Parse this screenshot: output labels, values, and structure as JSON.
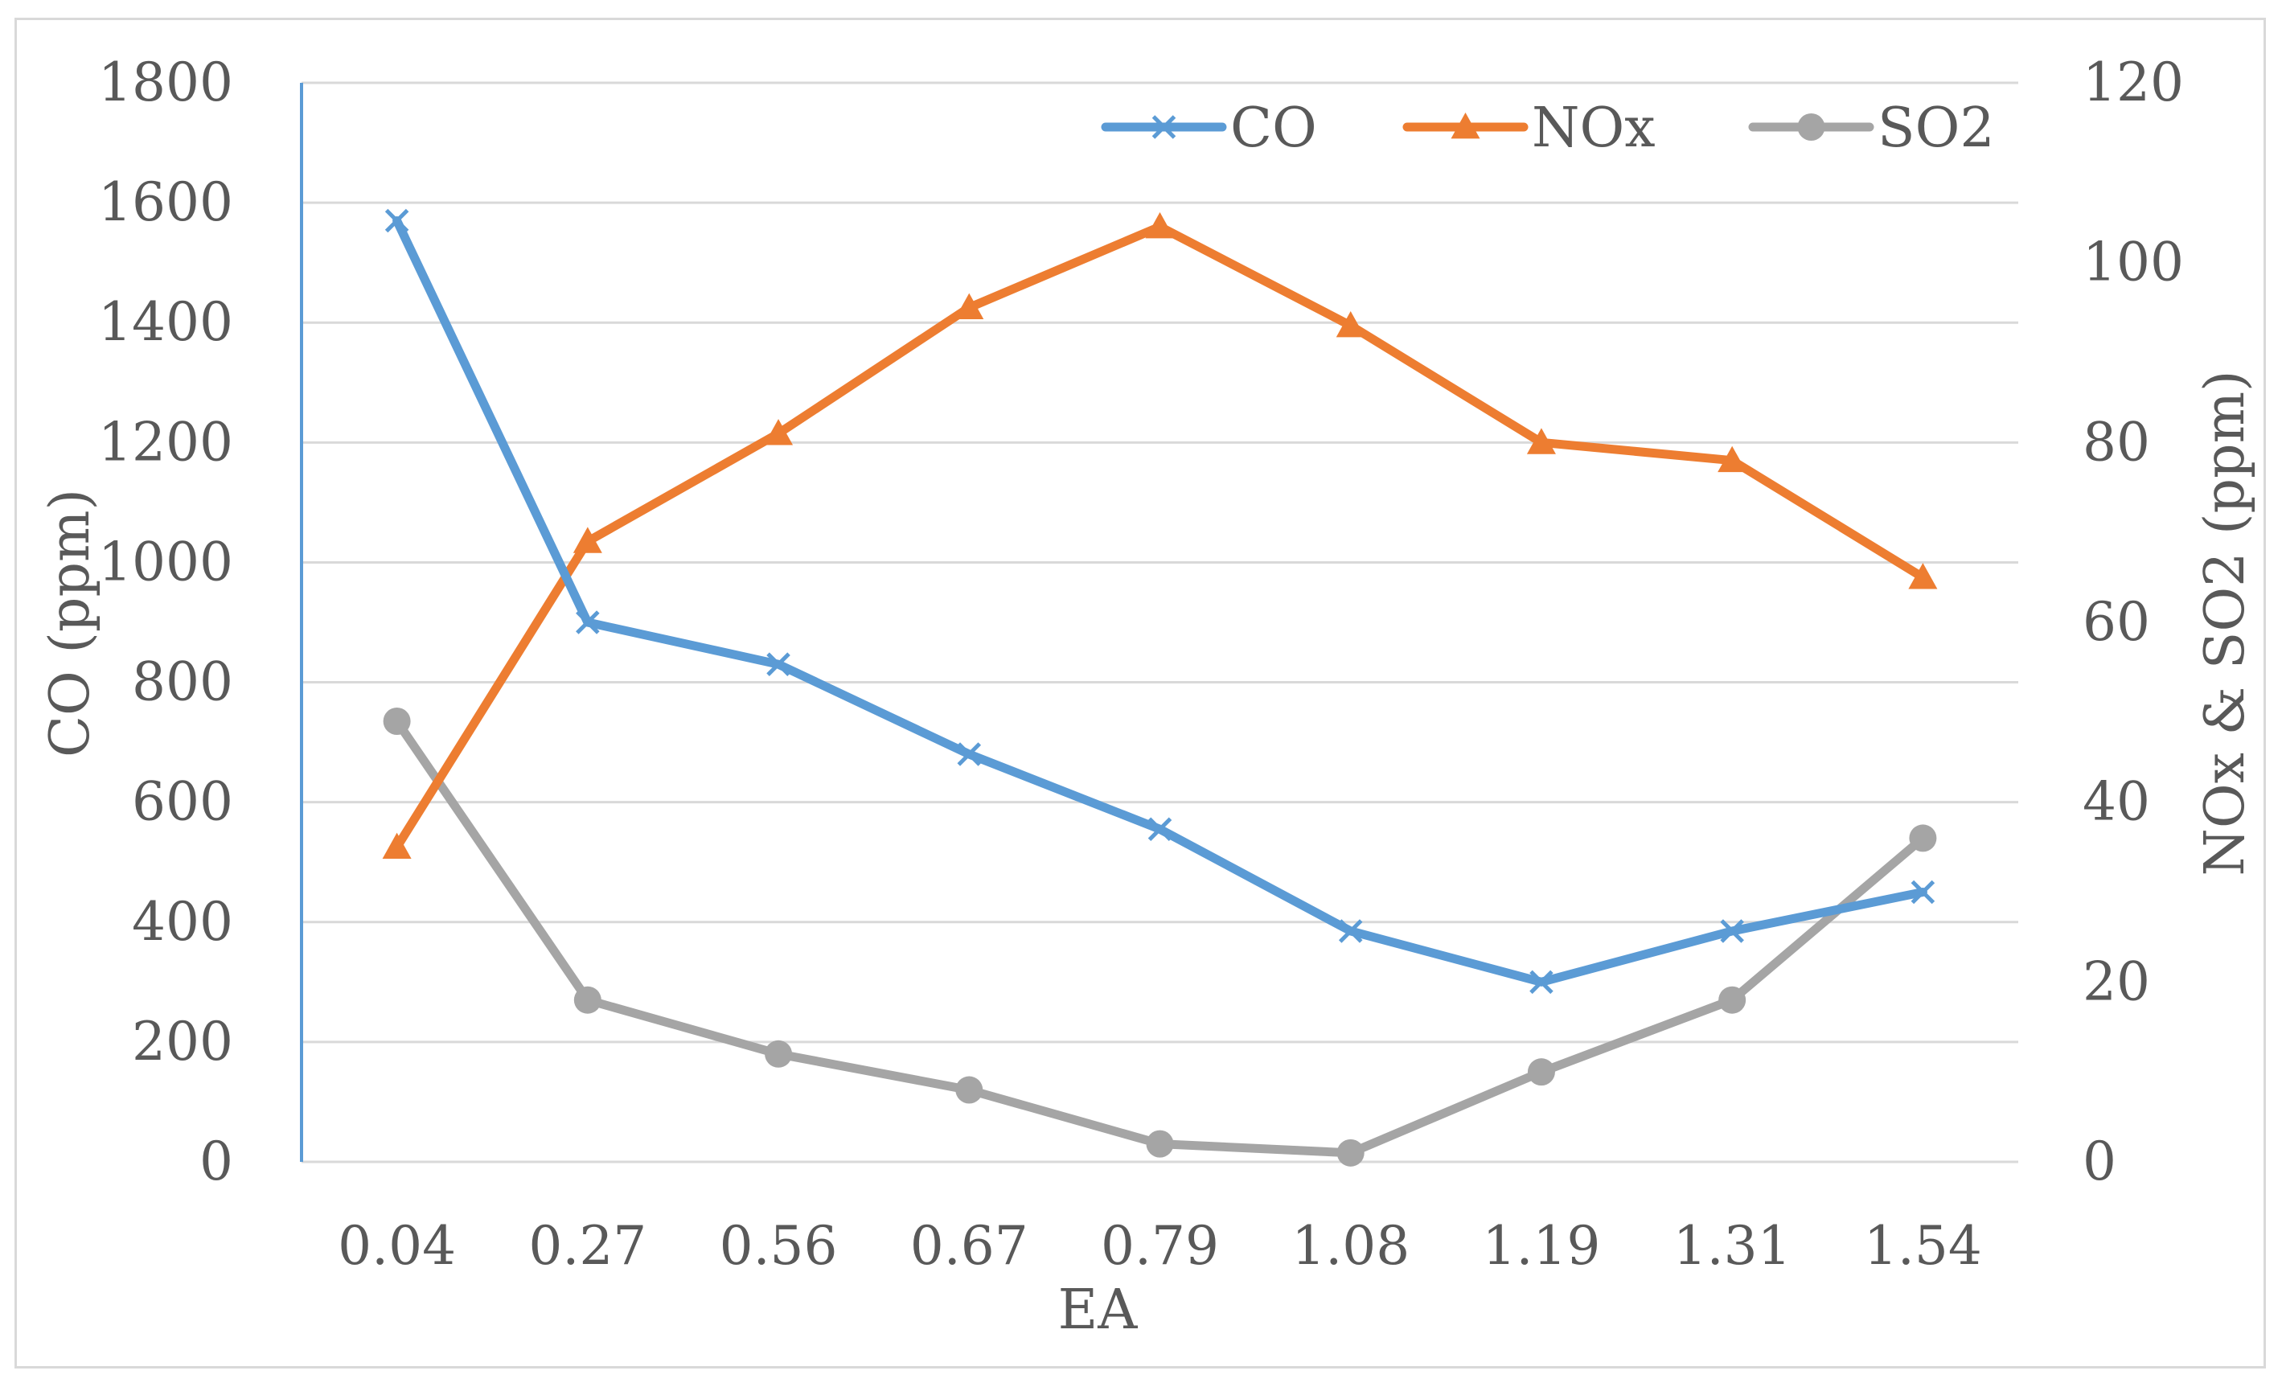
{
  "chart_data": {
    "type": "line",
    "title": "",
    "x": [
      "0.04",
      "0.27",
      "0.56",
      "0.67",
      "0.79",
      "1.08",
      "1.19",
      "1.31",
      "1.54"
    ],
    "xlabel": "EA",
    "ylabel_left": "CO (ppm)",
    "ylabel_right": "NOx & SO2 (ppm)",
    "ylim_left": [
      0,
      1800
    ],
    "ylim_right": [
      0,
      120
    ],
    "yticks_left": [
      "0",
      "200",
      "400",
      "600",
      "800",
      "1000",
      "1200",
      "1400",
      "1600",
      "1800"
    ],
    "yticks_right": [
      "0",
      "20",
      "40",
      "60",
      "80",
      "100",
      "120"
    ],
    "grid": true,
    "legend_position": "top-right",
    "series": [
      {
        "name": "CO",
        "axis": "left",
        "marker": "x",
        "color": "#5b9bd5",
        "values": [
          1570,
          900,
          830,
          680,
          555,
          385,
          300,
          385,
          450
        ]
      },
      {
        "name": "NOx",
        "axis": "right",
        "marker": "triangle",
        "color": "#ed7d31",
        "values": [
          35,
          69,
          81,
          95,
          104,
          93,
          80,
          78,
          65
        ]
      },
      {
        "name": "SO2",
        "axis": "right",
        "marker": "circle",
        "color": "#a5a5a5",
        "values": [
          49,
          18,
          12,
          8,
          2,
          1,
          10,
          18,
          36
        ]
      }
    ]
  }
}
